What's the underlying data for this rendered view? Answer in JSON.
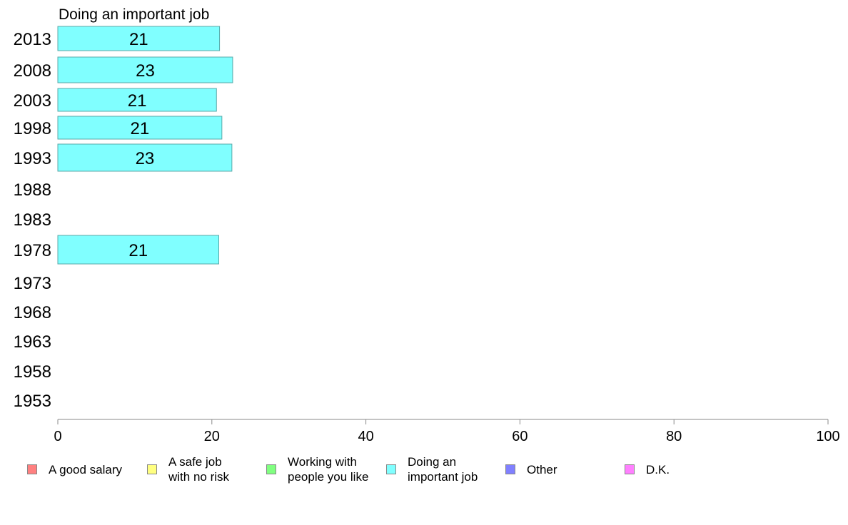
{
  "chart_data": {
    "type": "bar",
    "orientation": "horizontal",
    "title": "Doing an important job",
    "categories": [
      "2013",
      "2008",
      "2003",
      "1998",
      "1993",
      "1988",
      "1983",
      "1978",
      "1973",
      "1968",
      "1963",
      "1958",
      "1953"
    ],
    "values": [
      21,
      23,
      21,
      21,
      23,
      null,
      null,
      21,
      null,
      null,
      null,
      null,
      null
    ],
    "bar_values_precise": [
      21.0,
      22.7,
      20.6,
      21.3,
      22.6,
      null,
      null,
      20.9,
      null,
      null,
      null,
      null,
      null
    ],
    "xlim": [
      0,
      100
    ],
    "xticks": [
      0,
      20,
      40,
      60,
      80,
      100
    ],
    "bar_color": "#80ffff",
    "grid": false,
    "legend_position": "bottom",
    "legend": [
      {
        "label": "A good salary",
        "color": "#ff8080"
      },
      {
        "label": "A safe job\nwith no risk",
        "color": "#ffff80"
      },
      {
        "label": "Working with\npeople you like",
        "color": "#80ff80"
      },
      {
        "label": "Doing an\nimportant job",
        "color": "#80ffff"
      },
      {
        "label": "Other",
        "color": "#8080ff"
      },
      {
        "label": "D.K.",
        "color": "#ff80ff"
      }
    ]
  }
}
